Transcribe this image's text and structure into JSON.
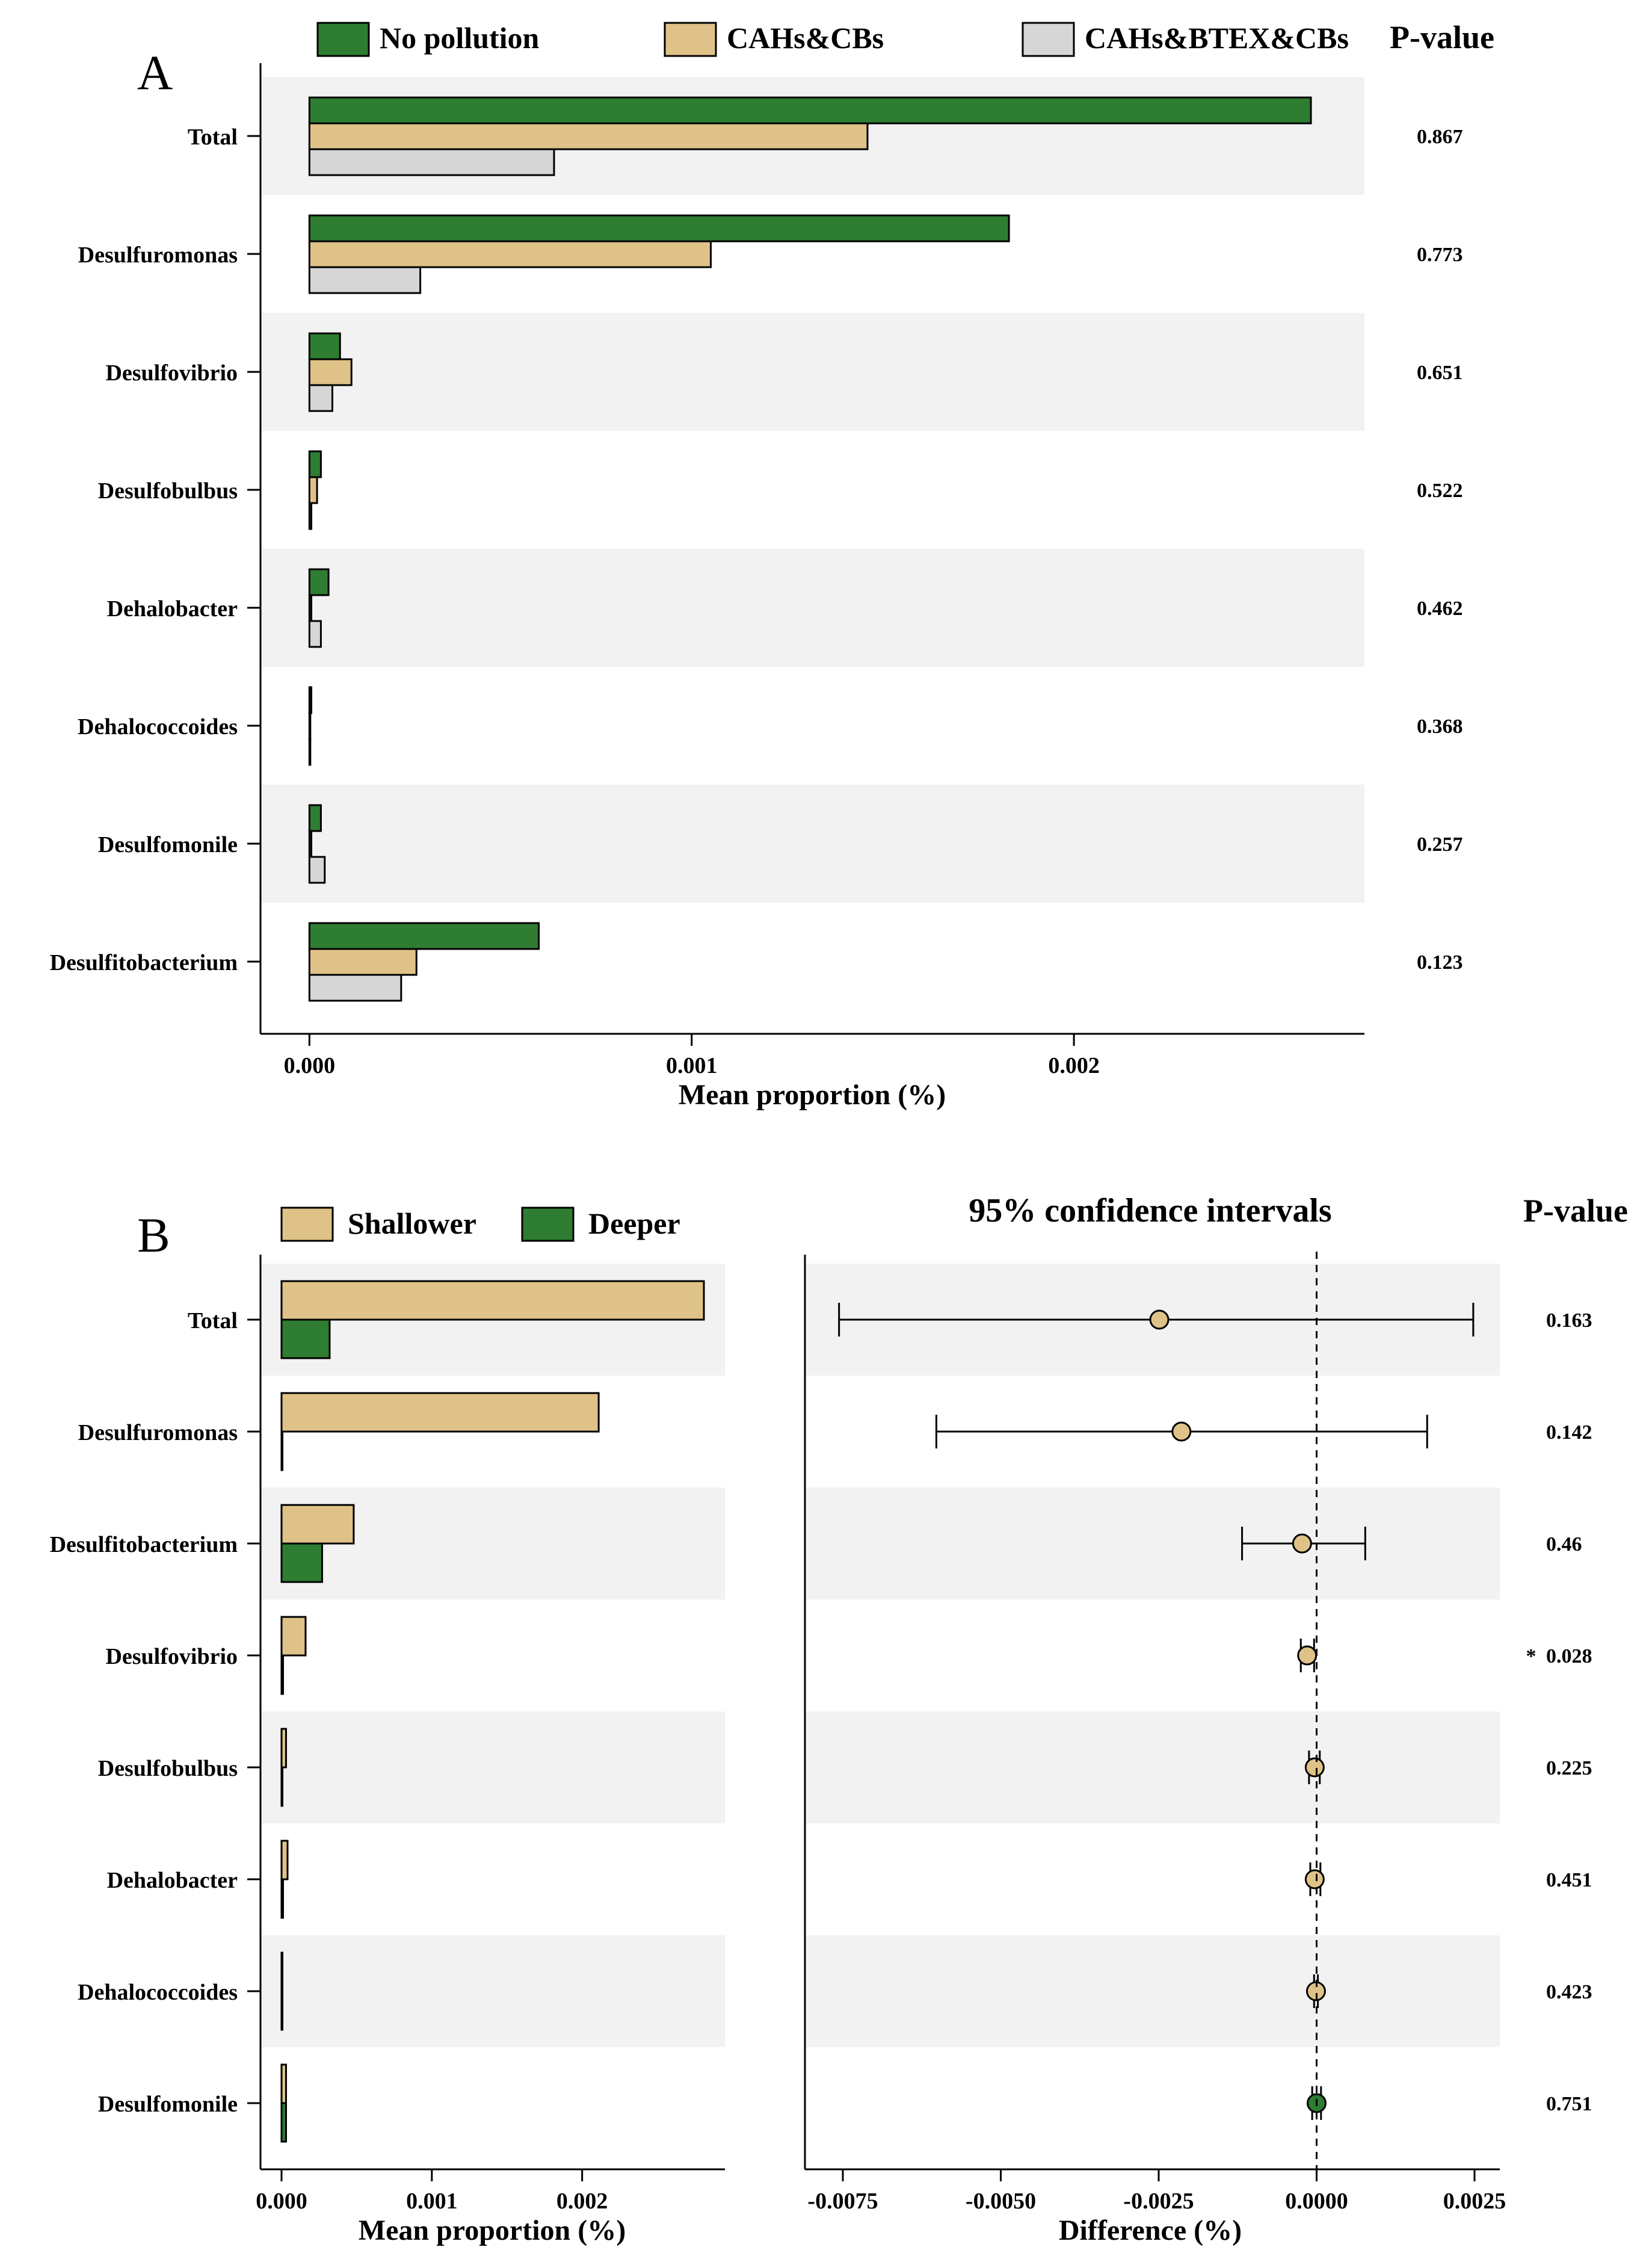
{
  "colors": {
    "no_pollution": "#2e7d32",
    "cahs_cbs": "#dfc287",
    "cahs_btex_cbs": "#d6d6d6",
    "shallower": "#dfc287",
    "deeper": "#2e7d32",
    "band": "#f2f2f2",
    "significance": "#cc0000"
  },
  "chart_data": [
    {
      "panel": "A",
      "type": "bar",
      "orientation": "horizontal",
      "categories": [
        "Total",
        "Desulfuromonas",
        "Desulfovibrio",
        "Desulfobulbus",
        "Dehalobacter",
        "Dehalococcoides",
        "Desulfomonile",
        "Desulfitobacterium"
      ],
      "series": [
        {
          "name": "No pollution",
          "values": [
            0.00262,
            0.00183,
            8e-05,
            3e-05,
            5e-05,
            5e-06,
            3e-05,
            0.0006
          ]
        },
        {
          "name": "CAHs&CBs",
          "values": [
            0.00146,
            0.00105,
            0.00011,
            2e-05,
            5e-06,
            0.0,
            5e-06,
            0.00028
          ]
        },
        {
          "name": "CAHs&BTEX&CBs",
          "values": [
            0.00064,
            0.00029,
            6e-05,
            5e-06,
            3e-05,
            0.0,
            4e-05,
            0.00024
          ]
        }
      ],
      "p_values": [
        "0.867",
        "0.773",
        "0.651",
        "0.522",
        "0.462",
        "0.368",
        "0.257",
        "0.123"
      ],
      "p_header": "P-value",
      "xlabel": "Mean proportion (%)",
      "xlim": [
        -0.000128,
        0.00276
      ],
      "xticks": [
        "0.000",
        "0.001",
        "0.002"
      ],
      "xtick_values": [
        0,
        0.001,
        0.002
      ],
      "legend_position": "top"
    },
    {
      "panel": "B",
      "type": "bar",
      "orientation": "horizontal",
      "categories": [
        "Total",
        "Desulfuromonas",
        "Desulfitobacterium",
        "Desulfovibrio",
        "Desulfobulbus",
        "Dehalobacter",
        "Dehalococcoides",
        "Desulfomonile"
      ],
      "series": [
        {
          "name": "Shallower",
          "values": [
            0.00281,
            0.00211,
            0.00048,
            0.00016,
            3e-05,
            4e-05,
            0.0,
            3e-05
          ]
        },
        {
          "name": "Deeper",
          "values": [
            0.00032,
            0.0,
            0.00027,
            1e-05,
            0.0,
            1e-05,
            0.0,
            3e-05
          ]
        }
      ],
      "xlabel": "Mean proportion (%)",
      "xlim": [
        -0.00014,
        0.00295
      ],
      "xticks": [
        "0.000",
        "0.001",
        "0.002"
      ],
      "xtick_values": [
        0,
        0.001,
        0.002
      ],
      "legend_position": "top"
    },
    {
      "panel": "B",
      "type": "scatter",
      "title": "95% confidence intervals",
      "categories": [
        "Total",
        "Desulfuromonas",
        "Desulfitobacterium",
        "Desulfovibrio",
        "Desulfobulbus",
        "Dehalobacter",
        "Dehalococcoides",
        "Desulfomonile"
      ],
      "estimates": [
        -0.00249,
        -0.00214,
        -0.00023,
        -0.00015,
        -3e-05,
        -3e-05,
        -1e-05,
        0.0
      ],
      "ci_low": [
        -0.00756,
        -0.00602,
        -0.00118,
        -0.00025,
        -0.00012,
        -0.0001,
        -4e-05,
        -7e-05
      ],
      "ci_high": [
        0.00248,
        0.00175,
        0.00077,
        -4e-05,
        5e-05,
        6e-05,
        2e-05,
        7e-05
      ],
      "point_colors": [
        "shallower",
        "shallower",
        "shallower",
        "shallower",
        "shallower",
        "shallower",
        "shallower",
        "deeper"
      ],
      "p_values": [
        "0.163",
        "0.142",
        "0.46",
        "0.028",
        "0.225",
        "0.451",
        "0.423",
        "0.751"
      ],
      "significance_marker": "*",
      "significant_index": 3,
      "p_header": "P-value",
      "xlabel": "Difference (%)",
      "xlim": [
        -0.0081,
        0.0029
      ],
      "xticks": [
        "-0.0075",
        "-0.0050",
        "-0.0025",
        "0.0000",
        "0.0025"
      ],
      "xtick_values": [
        -0.0075,
        -0.005,
        -0.0025,
        0,
        0.0025
      ],
      "reference_line": 0
    }
  ],
  "panel_labels": {
    "a": "A",
    "b": "B"
  }
}
